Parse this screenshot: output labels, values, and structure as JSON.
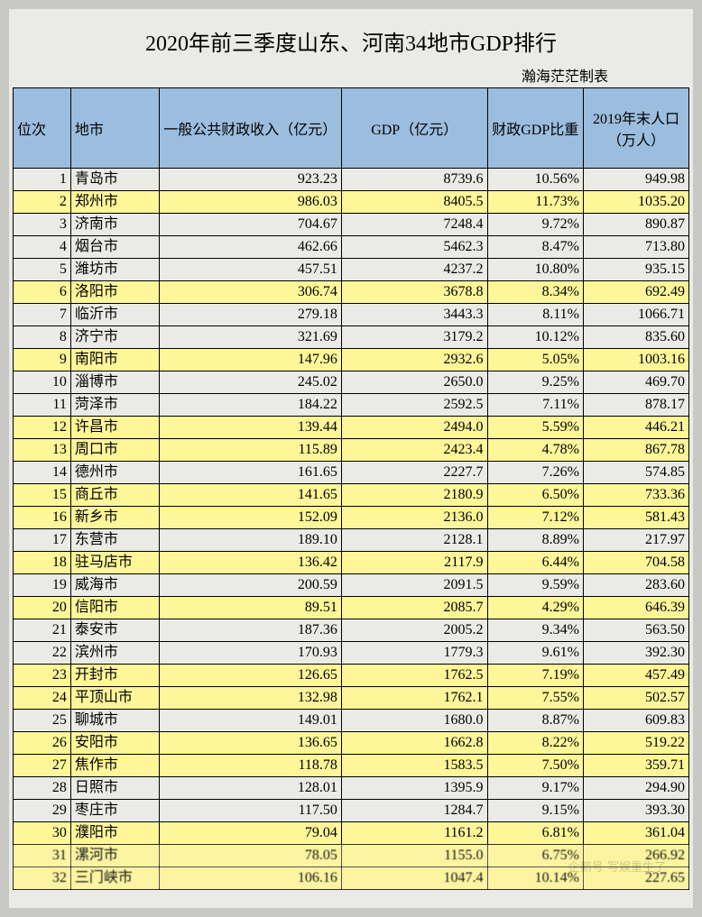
{
  "title": "2020年前三季度山东、河南34地市GDP排行",
  "credit": "瀚海茫茫制表",
  "columns": [
    "位次",
    "地市",
    "一般公共财政收入（亿元）",
    "GDP（亿元）",
    "财政GDP比重",
    "2019年末人口（万人）"
  ],
  "header_bg": "#9bbdde",
  "highlight_bg": "#fff69a",
  "normal_bg": "#eaeae6",
  "border_color": "#000000",
  "rows": [
    {
      "rank": "1",
      "city": "青岛市",
      "rev": "923.23",
      "gdp": "8739.6",
      "ratio": "10.56%",
      "pop": "949.98",
      "hl": false
    },
    {
      "rank": "2",
      "city": "郑州市",
      "rev": "986.03",
      "gdp": "8405.5",
      "ratio": "11.73%",
      "pop": "1035.20",
      "hl": true
    },
    {
      "rank": "3",
      "city": "济南市",
      "rev": "704.67",
      "gdp": "7248.4",
      "ratio": "9.72%",
      "pop": "890.87",
      "hl": false
    },
    {
      "rank": "4",
      "city": "烟台市",
      "rev": "462.66",
      "gdp": "5462.3",
      "ratio": "8.47%",
      "pop": "713.80",
      "hl": false
    },
    {
      "rank": "5",
      "city": "潍坊市",
      "rev": "457.51",
      "gdp": "4237.2",
      "ratio": "10.80%",
      "pop": "935.15",
      "hl": false
    },
    {
      "rank": "6",
      "city": "洛阳市",
      "rev": "306.74",
      "gdp": "3678.8",
      "ratio": "8.34%",
      "pop": "692.49",
      "hl": true
    },
    {
      "rank": "7",
      "city": "临沂市",
      "rev": "279.18",
      "gdp": "3443.3",
      "ratio": "8.11%",
      "pop": "1066.71",
      "hl": false
    },
    {
      "rank": "8",
      "city": "济宁市",
      "rev": "321.69",
      "gdp": "3179.2",
      "ratio": "10.12%",
      "pop": "835.60",
      "hl": false
    },
    {
      "rank": "9",
      "city": "南阳市",
      "rev": "147.96",
      "gdp": "2932.6",
      "ratio": "5.05%",
      "pop": "1003.16",
      "hl": true
    },
    {
      "rank": "10",
      "city": "淄博市",
      "rev": "245.02",
      "gdp": "2650.0",
      "ratio": "9.25%",
      "pop": "469.70",
      "hl": false
    },
    {
      "rank": "11",
      "city": "菏泽市",
      "rev": "184.22",
      "gdp": "2592.5",
      "ratio": "7.11%",
      "pop": "878.17",
      "hl": false
    },
    {
      "rank": "12",
      "city": "许昌市",
      "rev": "139.44",
      "gdp": "2494.0",
      "ratio": "5.59%",
      "pop": "446.21",
      "hl": true
    },
    {
      "rank": "13",
      "city": "周口市",
      "rev": "115.89",
      "gdp": "2423.4",
      "ratio": "4.78%",
      "pop": "867.78",
      "hl": true
    },
    {
      "rank": "14",
      "city": "德州市",
      "rev": "161.65",
      "gdp": "2227.7",
      "ratio": "7.26%",
      "pop": "574.85",
      "hl": false
    },
    {
      "rank": "15",
      "city": "商丘市",
      "rev": "141.65",
      "gdp": "2180.9",
      "ratio": "6.50%",
      "pop": "733.36",
      "hl": true
    },
    {
      "rank": "16",
      "city": "新乡市",
      "rev": "152.09",
      "gdp": "2136.0",
      "ratio": "7.12%",
      "pop": "581.43",
      "hl": true
    },
    {
      "rank": "17",
      "city": "东营市",
      "rev": "189.10",
      "gdp": "2128.1",
      "ratio": "8.89%",
      "pop": "217.97",
      "hl": false
    },
    {
      "rank": "18",
      "city": "驻马店市",
      "rev": "136.42",
      "gdp": "2117.9",
      "ratio": "6.44%",
      "pop": "704.58",
      "hl": true
    },
    {
      "rank": "19",
      "city": "威海市",
      "rev": "200.59",
      "gdp": "2091.5",
      "ratio": "9.59%",
      "pop": "283.60",
      "hl": false
    },
    {
      "rank": "20",
      "city": "信阳市",
      "rev": "89.51",
      "gdp": "2085.7",
      "ratio": "4.29%",
      "pop": "646.39",
      "hl": true
    },
    {
      "rank": "21",
      "city": "泰安市",
      "rev": "187.36",
      "gdp": "2005.2",
      "ratio": "9.34%",
      "pop": "563.50",
      "hl": false
    },
    {
      "rank": "22",
      "city": "滨州市",
      "rev": "170.93",
      "gdp": "1779.3",
      "ratio": "9.61%",
      "pop": "392.30",
      "hl": false
    },
    {
      "rank": "23",
      "city": "开封市",
      "rev": "126.65",
      "gdp": "1762.5",
      "ratio": "7.19%",
      "pop": "457.49",
      "hl": true
    },
    {
      "rank": "24",
      "city": "平顶山市",
      "rev": "132.98",
      "gdp": "1762.1",
      "ratio": "7.55%",
      "pop": "502.57",
      "hl": true
    },
    {
      "rank": "25",
      "city": "聊城市",
      "rev": "149.01",
      "gdp": "1680.0",
      "ratio": "8.87%",
      "pop": "609.83",
      "hl": false
    },
    {
      "rank": "26",
      "city": "安阳市",
      "rev": "136.65",
      "gdp": "1662.8",
      "ratio": "8.22%",
      "pop": "519.22",
      "hl": true
    },
    {
      "rank": "27",
      "city": "焦作市",
      "rev": "118.78",
      "gdp": "1583.5",
      "ratio": "7.50%",
      "pop": "359.71",
      "hl": true
    },
    {
      "rank": "28",
      "city": "日照市",
      "rev": "128.01",
      "gdp": "1395.9",
      "ratio": "9.17%",
      "pop": "294.90",
      "hl": false
    },
    {
      "rank": "29",
      "city": "枣庄市",
      "rev": "117.50",
      "gdp": "1284.7",
      "ratio": "9.15%",
      "pop": "393.30",
      "hl": false
    },
    {
      "rank": "30",
      "city": "濮阳市",
      "rev": "79.04",
      "gdp": "1161.2",
      "ratio": "6.81%",
      "pop": "361.04",
      "hl": true
    },
    {
      "rank": "31",
      "city": "漯河市",
      "rev": "78.05",
      "gdp": "1155.0",
      "ratio": "6.75%",
      "pop": "266.92",
      "hl": true
    },
    {
      "rank": "32",
      "city": "三门峡市",
      "rev": "106.16",
      "gdp": "1047.4",
      "ratio": "10.14%",
      "pop": "227.65",
      "hl": true
    }
  ],
  "watermark": "企鹅号·写娱重生了"
}
